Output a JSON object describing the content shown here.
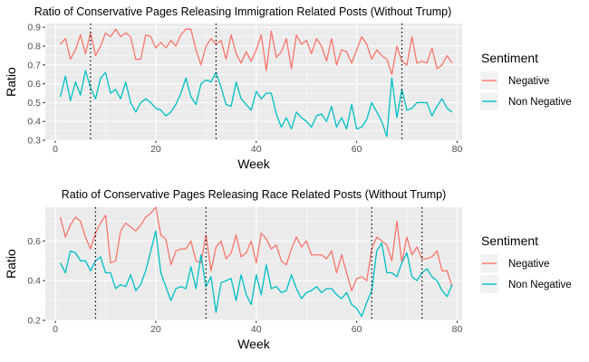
{
  "colors": {
    "negative": "#F8766D",
    "non_negative": "#00BFC4",
    "panel": "#EBEBEB",
    "grid": "#FFFFFF",
    "vline": "#000000"
  },
  "chart_data": [
    {
      "type": "line",
      "title": "Ratio of Conservative Pages Releasing Immigration Related Posts (Without Trump)",
      "xlabel": "Week",
      "ylabel": "Ratio",
      "xlim": [
        -2,
        81
      ],
      "ylim": [
        0.3,
        0.92
      ],
      "xticks": [
        0,
        20,
        40,
        60,
        80
      ],
      "yticks": [
        0.3,
        0.4,
        0.5,
        0.6,
        0.7,
        0.8,
        0.9
      ],
      "vlines": [
        7,
        32,
        69
      ],
      "grid": true,
      "legend": {
        "title": "Sentiment",
        "position": "right"
      },
      "x": [
        1,
        2,
        3,
        4,
        5,
        6,
        7,
        8,
        9,
        10,
        11,
        12,
        13,
        14,
        15,
        16,
        17,
        18,
        19,
        20,
        21,
        22,
        23,
        24,
        25,
        26,
        27,
        28,
        29,
        30,
        31,
        32,
        33,
        34,
        35,
        36,
        37,
        38,
        39,
        40,
        41,
        42,
        43,
        44,
        45,
        46,
        47,
        48,
        49,
        50,
        51,
        52,
        53,
        54,
        55,
        56,
        57,
        58,
        59,
        60,
        61,
        62,
        63,
        64,
        65,
        66,
        67,
        68,
        69,
        70,
        71,
        72,
        73,
        74,
        75,
        76,
        77,
        78,
        79
      ],
      "series": [
        {
          "name": "Negative",
          "values": [
            0.81,
            0.84,
            0.73,
            0.78,
            0.86,
            0.76,
            0.87,
            0.75,
            0.8,
            0.87,
            0.85,
            0.89,
            0.85,
            0.87,
            0.85,
            0.73,
            0.73,
            0.86,
            0.85,
            0.79,
            0.82,
            0.79,
            0.83,
            0.8,
            0.86,
            0.89,
            0.89,
            0.78,
            0.7,
            0.8,
            0.84,
            0.81,
            0.83,
            0.73,
            0.86,
            0.76,
            0.71,
            0.77,
            0.72,
            0.78,
            0.86,
            0.67,
            0.88,
            0.74,
            0.77,
            0.84,
            0.68,
            0.86,
            0.81,
            0.83,
            0.76,
            0.84,
            0.8,
            0.72,
            0.84,
            0.7,
            0.78,
            0.77,
            0.71,
            0.78,
            0.85,
            0.81,
            0.73,
            0.78,
            0.75,
            0.73,
            0.65,
            0.8,
            0.72,
            0.7,
            0.85,
            0.71,
            0.72,
            0.71,
            0.79,
            0.68,
            0.7,
            0.75,
            0.71
          ]
        },
        {
          "name": "Non Negative",
          "values": [
            0.53,
            0.64,
            0.51,
            0.61,
            0.54,
            0.67,
            0.58,
            0.52,
            0.63,
            0.66,
            0.55,
            0.57,
            0.52,
            0.61,
            0.5,
            0.45,
            0.5,
            0.52,
            0.5,
            0.47,
            0.46,
            0.43,
            0.45,
            0.49,
            0.55,
            0.63,
            0.53,
            0.49,
            0.6,
            0.62,
            0.61,
            0.66,
            0.58,
            0.49,
            0.48,
            0.61,
            0.52,
            0.49,
            0.46,
            0.56,
            0.52,
            0.55,
            0.55,
            0.44,
            0.37,
            0.42,
            0.36,
            0.45,
            0.42,
            0.4,
            0.37,
            0.43,
            0.44,
            0.4,
            0.48,
            0.37,
            0.42,
            0.36,
            0.49,
            0.36,
            0.37,
            0.41,
            0.5,
            0.45,
            0.4,
            0.32,
            0.63,
            0.42,
            0.57,
            0.46,
            0.47,
            0.5,
            0.5,
            0.5,
            0.43,
            0.48,
            0.52,
            0.47,
            0.45
          ]
        }
      ]
    },
    {
      "type": "line",
      "title": "Ratio of Conservative Pages Releasing Race Related Posts (Without Trump)",
      "xlabel": "Week",
      "ylabel": "Ratio",
      "xlim": [
        -2,
        81
      ],
      "ylim": [
        0.2,
        0.77
      ],
      "xticks": [
        0,
        20,
        40,
        60,
        80
      ],
      "yticks": [
        0.2,
        0.4,
        0.6
      ],
      "vlines": [
        8,
        30,
        63,
        73
      ],
      "grid": true,
      "legend": {
        "title": "Sentiment",
        "position": "right"
      },
      "x": [
        1,
        2,
        3,
        4,
        5,
        6,
        7,
        8,
        9,
        10,
        11,
        12,
        13,
        14,
        15,
        16,
        17,
        18,
        19,
        20,
        21,
        22,
        23,
        24,
        25,
        26,
        27,
        28,
        29,
        30,
        31,
        32,
        33,
        34,
        35,
        36,
        37,
        38,
        39,
        40,
        41,
        42,
        43,
        44,
        45,
        46,
        47,
        48,
        49,
        50,
        51,
        52,
        53,
        54,
        55,
        56,
        57,
        58,
        59,
        60,
        61,
        62,
        63,
        64,
        65,
        66,
        67,
        68,
        69,
        70,
        71,
        72,
        73,
        74,
        75,
        76,
        77,
        78,
        79
      ],
      "series": [
        {
          "name": "Negative",
          "values": [
            0.72,
            0.62,
            0.68,
            0.72,
            0.7,
            0.62,
            0.56,
            0.64,
            0.69,
            0.73,
            0.49,
            0.5,
            0.65,
            0.69,
            0.67,
            0.65,
            0.68,
            0.72,
            0.74,
            0.77,
            0.63,
            0.61,
            0.48,
            0.55,
            0.56,
            0.56,
            0.6,
            0.5,
            0.49,
            0.63,
            0.45,
            0.57,
            0.6,
            0.51,
            0.54,
            0.63,
            0.52,
            0.54,
            0.6,
            0.49,
            0.64,
            0.61,
            0.56,
            0.58,
            0.5,
            0.48,
            0.56,
            0.62,
            0.57,
            0.6,
            0.53,
            0.53,
            0.53,
            0.51,
            0.55,
            0.44,
            0.53,
            0.44,
            0.35,
            0.41,
            0.42,
            0.4,
            0.56,
            0.62,
            0.6,
            0.58,
            0.5,
            0.7,
            0.49,
            0.62,
            0.53,
            0.57,
            0.51,
            0.51,
            0.52,
            0.55,
            0.45,
            0.45,
            0.37
          ]
        },
        {
          "name": "Non Negative",
          "values": [
            0.49,
            0.44,
            0.55,
            0.54,
            0.5,
            0.5,
            0.45,
            0.5,
            0.52,
            0.44,
            0.44,
            0.36,
            0.38,
            0.37,
            0.43,
            0.35,
            0.38,
            0.45,
            0.55,
            0.65,
            0.44,
            0.37,
            0.3,
            0.36,
            0.37,
            0.36,
            0.47,
            0.36,
            0.53,
            0.37,
            0.42,
            0.24,
            0.39,
            0.4,
            0.41,
            0.3,
            0.43,
            0.33,
            0.28,
            0.43,
            0.33,
            0.48,
            0.36,
            0.37,
            0.34,
            0.35,
            0.43,
            0.36,
            0.31,
            0.34,
            0.35,
            0.37,
            0.34,
            0.36,
            0.36,
            0.33,
            0.31,
            0.34,
            0.28,
            0.26,
            0.22,
            0.29,
            0.35,
            0.55,
            0.59,
            0.44,
            0.44,
            0.42,
            0.49,
            0.54,
            0.42,
            0.4,
            0.44,
            0.46,
            0.42,
            0.4,
            0.35,
            0.32,
            0.38
          ]
        }
      ]
    }
  ]
}
